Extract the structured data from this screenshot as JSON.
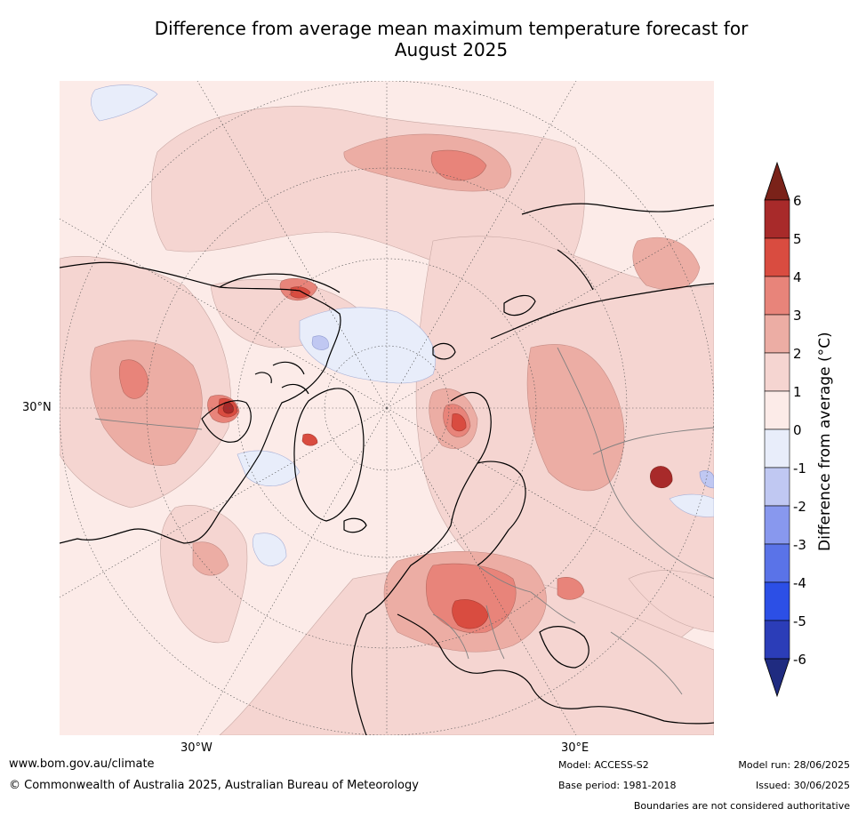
{
  "title": {
    "line1": "Difference from average mean maximum temperature forecast for",
    "line2": "August 2025"
  },
  "map": {
    "projection": "north-polar-stereographic",
    "lat_labels": [
      "30°N"
    ],
    "lon_labels": [
      "30°W",
      "30°E"
    ],
    "anomaly_regions": [
      {
        "region": "central Europe / Balkans",
        "value_range": "3 to 5"
      },
      {
        "region": "eastern Europe / Russia",
        "value_range": "2 to 3"
      },
      {
        "region": "Scandinavia",
        "value_range": "3 to 4"
      },
      {
        "region": "Central Asia hotspot",
        "value_range": "5 to 6"
      },
      {
        "region": "North America",
        "value_range": "1 to 3"
      },
      {
        "region": "Hudson Bay / Canadian Arctic",
        "value_range": "4 to 5"
      },
      {
        "region": "Arctic Ocean",
        "value_range": "-1 to 0"
      },
      {
        "region": "North Pacific",
        "value_range": "1 to 3"
      }
    ]
  },
  "colorbar": {
    "title": "Difference from average (°C)",
    "ticks": [
      "6",
      "5",
      "4",
      "3",
      "2",
      "1",
      "0",
      "-1",
      "-2",
      "-3",
      "-4",
      "-5",
      "-6"
    ],
    "colors": [
      "#a82a2a",
      "#d94c40",
      "#e8847a",
      "#ecada4",
      "#f5d5d1",
      "#fcebe8",
      "#e8edfa",
      "#c0c8f2",
      "#8898ee",
      "#5a73e8",
      "#2c4fe6",
      "#2b3db8"
    ],
    "extend_max_color": "#7a2219",
    "extend_min_color": "#1f2b80"
  },
  "footer": {
    "website": "www.bom.gov.au/climate",
    "copyright": "© Commonwealth of Australia 2025, Australian Bureau of Meteorology",
    "model": "Model: ACCESS-S2",
    "base_period": "Base period: 1981-2018",
    "model_run": "Model run: 28/06/2025",
    "issued": "Issued: 30/06/2025",
    "disclaimer": "Boundaries are not considered authoritative"
  }
}
